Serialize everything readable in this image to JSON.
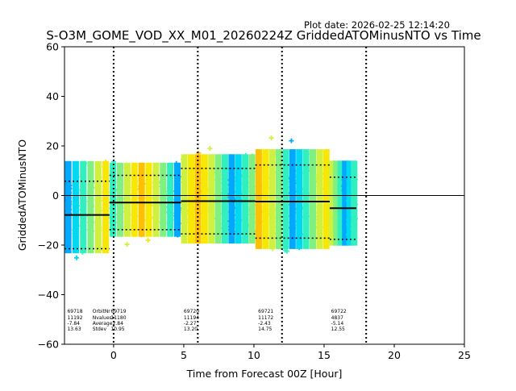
{
  "plot_date": "Plot date: 2026-02-25 12:14:20",
  "chart_data": {
    "type": "scatter",
    "title": "S-O3M_GOME_VOD_XX_M01_20260224Z GriddedATOMinusNTO vs Time",
    "xlabel": "Time from Forecast 00Z [Hour]",
    "ylabel": "GriddedATOMinusNTO",
    "xlim": [
      -3.5,
      25
    ],
    "ylim": [
      -60,
      60
    ],
    "xticks": [
      0,
      5,
      10,
      15,
      20,
      25
    ],
    "yticks": [
      -60,
      -40,
      -20,
      0,
      20,
      40,
      60
    ],
    "zero_line": 0,
    "forecast_markers_hours": [
      0,
      6,
      12,
      18
    ],
    "stat_row_labels": [
      "OrbitNr",
      "Nvalues",
      "Average",
      "Stdev"
    ],
    "orbits": [
      {
        "label": [
          "69718",
          "11192",
          "-7.84",
          "13.63"
        ],
        "orbit": 69718,
        "nvalues": 11192,
        "average": -7.84,
        "stdev": 13.63,
        "t_start": -3.5,
        "t_end": -0.3,
        "label_x": -3.3
      },
      {
        "label": [
          "69719",
          "11180",
          "-2.84",
          "10.95"
        ],
        "orbit": 69719,
        "nvalues": 11180,
        "average": -2.84,
        "stdev": 10.95,
        "t_start": -0.3,
        "t_end": 4.8,
        "label_x": -0.2
      },
      {
        "label": [
          "69720",
          "11194",
          "-2.27",
          "13.20"
        ],
        "orbit": 69720,
        "nvalues": 11194,
        "average": -2.27,
        "stdev": 13.2,
        "t_start": 4.8,
        "t_end": 10.1,
        "label_x": 5.0
      },
      {
        "label": [
          "69721",
          "11172",
          "-2.43",
          "14.75"
        ],
        "orbit": 69721,
        "nvalues": 11172,
        "average": -2.43,
        "stdev": 14.75,
        "t_start": 10.1,
        "t_end": 15.4,
        "label_x": 10.3
      },
      {
        "label": [
          "69722",
          "4837",
          "-5.14",
          "12.55"
        ],
        "orbit": 69722,
        "nvalues": 4837,
        "average": -5.14,
        "stdev": 12.55,
        "t_start": 15.4,
        "t_end": 17.3,
        "label_x": 15.5
      }
    ],
    "colormap_note": "points colored by latitude band (cyan/blue to green/yellow/orange)",
    "colors": {
      "deep_blue": "#00a8ff",
      "cyan": "#00d8f0",
      "teal": "#30f0c0",
      "green": "#80f080",
      "lime": "#d0f040",
      "yellow": "#f8e800",
      "orange": "#ffc000",
      "frame": "#000000"
    }
  }
}
